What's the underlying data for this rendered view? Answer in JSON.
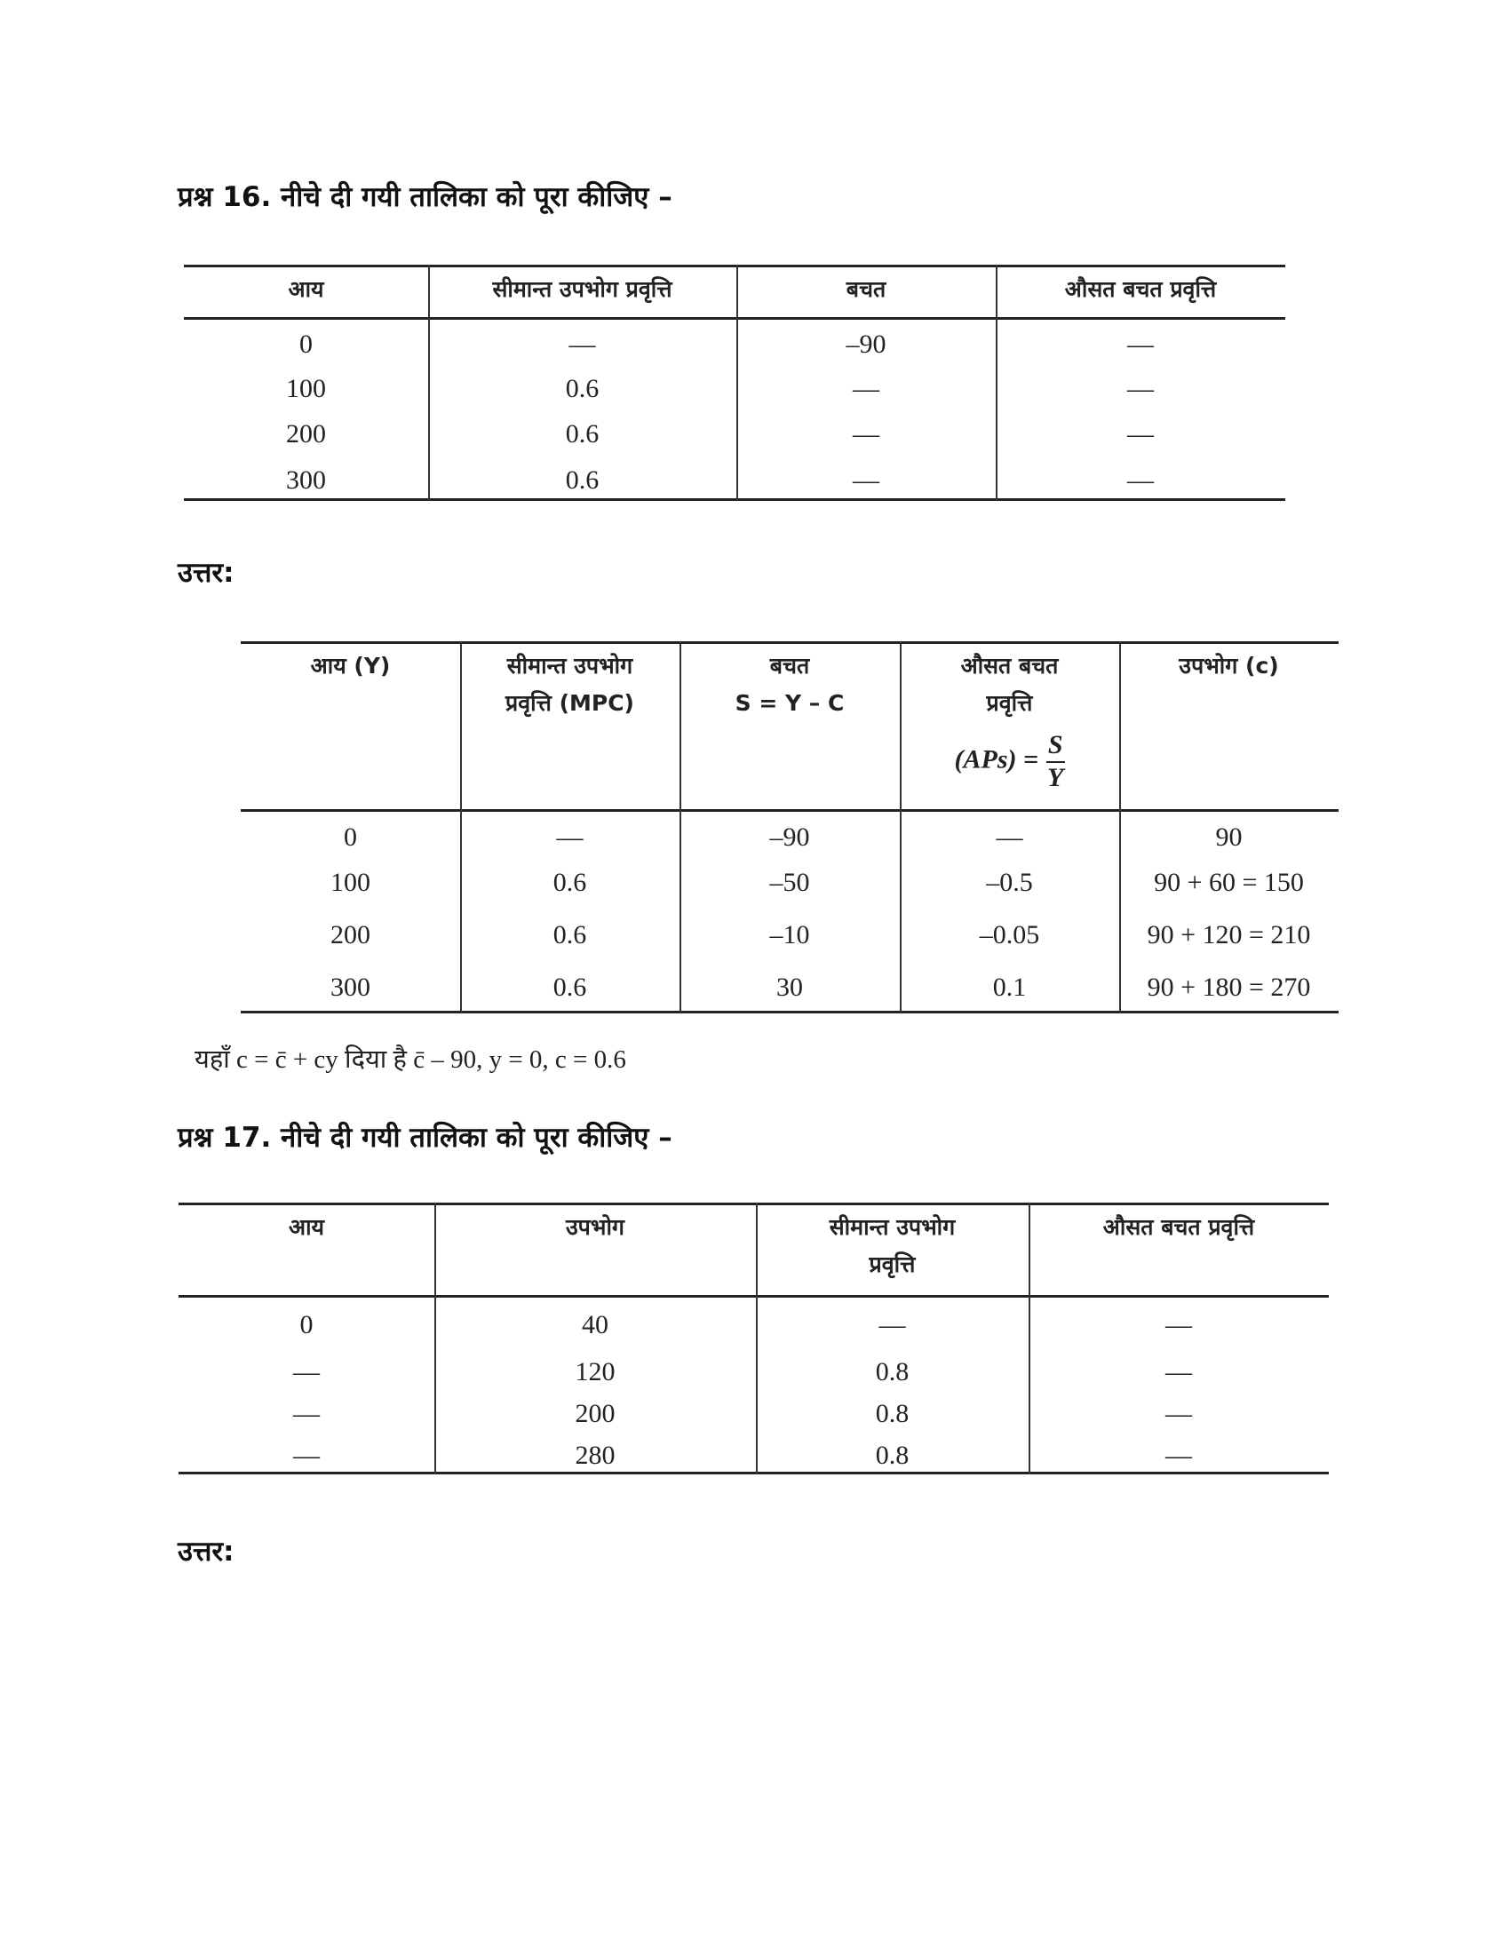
{
  "q16": {
    "title": "प्रश्न 16. नीचे दी गयी तालिका को पूरा कीजिए –",
    "headers": [
      "आय",
      "सीमान्त उपभोग प्रवृत्ति",
      "बचत",
      "औसत बचत प्रवृत्ति"
    ],
    "rows": [
      [
        "0",
        "—",
        "–90",
        "—"
      ],
      [
        "100",
        "0.6",
        "—",
        "—"
      ],
      [
        "200",
        "0.6",
        "—",
        "—"
      ],
      [
        "300",
        "0.6",
        "—",
        "—"
      ]
    ]
  },
  "answer16": {
    "label": "उत्तर:",
    "headers": [
      [
        "आय (Y)"
      ],
      [
        "सीमान्त उपभोग",
        "प्रवृत्ति (MPC)"
      ],
      [
        "बचत",
        "S = Y – C"
      ],
      [
        "औसत बचत",
        "प्रवृत्ति"
      ],
      [
        "उपभोग (c)"
      ]
    ],
    "aps_formula": {
      "lhs": "(APs) =",
      "num": "S",
      "den": "Y"
    },
    "rows": [
      [
        "0",
        "—",
        "–90",
        "—",
        "90"
      ],
      [
        "100",
        "0.6",
        "–50",
        "–0.5",
        "90 + 60 = 150"
      ],
      [
        "200",
        "0.6",
        "–10",
        "–0.05",
        "90 + 120 = 210"
      ],
      [
        "300",
        "0.6",
        "30",
        "0.1",
        "90 + 180 = 270"
      ]
    ],
    "note": "यहाँ c = c̄ + cy दिया है c̄ – 90, y = 0, c = 0.6"
  },
  "q17": {
    "title": "प्रश्न 17. नीचे दी गयी तालिका को पूरा कीजिए –",
    "headers": [
      [
        "आय"
      ],
      [
        "उपभोग"
      ],
      [
        "सीमान्त उपभोग",
        "प्रवृत्ति"
      ],
      [
        "औसत बचत प्रवृत्ति"
      ]
    ],
    "rows": [
      [
        "0",
        "40",
        "—",
        "—"
      ],
      [
        "—",
        "120",
        "0.8",
        "—"
      ],
      [
        "—",
        "200",
        "0.8",
        "—"
      ],
      [
        "—",
        "280",
        "0.8",
        "—"
      ]
    ]
  },
  "answer17": {
    "label": "उत्तर:"
  }
}
